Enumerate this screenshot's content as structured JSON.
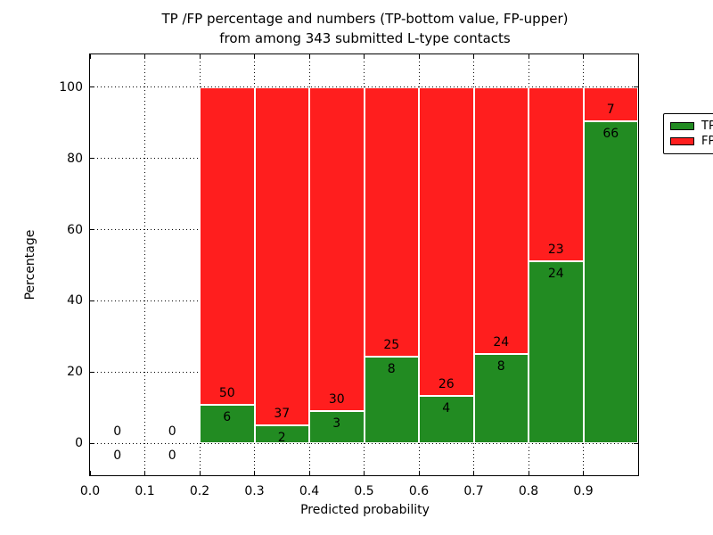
{
  "figure": {
    "title_line1": "TP /FP percentage and numbers (TP-bottom value, FP-upper)",
    "title_line2": "from among 343 submitted L-type contacts",
    "xlabel": "Predicted probability",
    "ylabel": "Percentage"
  },
  "legend": {
    "items": [
      {
        "label": "TP",
        "color": "#228b22"
      },
      {
        "label": "FP",
        "color": "#ff1e1e"
      }
    ]
  },
  "chart_data": {
    "type": "bar",
    "stacked": true,
    "title": "TP /FP percentage and numbers (TP-bottom value, FP-upper) from among 343 submitted L-type contacts",
    "xlabel": "Predicted probability",
    "ylabel": "Percentage",
    "xlim": [
      0.0,
      1.0
    ],
    "ylim": [
      -9,
      109.25
    ],
    "x_tick_values": [
      0.0,
      0.1,
      0.2,
      0.3,
      0.4,
      0.5,
      0.6,
      0.7,
      0.8,
      0.9
    ],
    "x_tick_labels": [
      "0.0",
      "0.1",
      "0.2",
      "0.3",
      "0.4",
      "0.5",
      "0.6",
      "0.7",
      "0.8",
      "0.9"
    ],
    "y_tick_values": [
      0,
      20,
      40,
      60,
      80,
      100
    ],
    "y_tick_labels": [
      "0",
      "20",
      "40",
      "60",
      "80",
      "100"
    ],
    "grid": "dotted",
    "legend_position": "upper right",
    "bin_width": 0.1,
    "series": [
      {
        "name": "TP",
        "color": "#228b22"
      },
      {
        "name": "FP",
        "color": "#ff1e1e"
      }
    ],
    "total_contacts": 343,
    "bins": [
      {
        "x_start": 0.0,
        "tp_count": 0,
        "fp_count": 0,
        "tp_pct": 0,
        "fp_pct": 0
      },
      {
        "x_start": 0.1,
        "tp_count": 0,
        "fp_count": 0,
        "tp_pct": 0,
        "fp_pct": 0
      },
      {
        "x_start": 0.2,
        "tp_count": 6,
        "fp_count": 50,
        "tp_pct": 10.71,
        "fp_pct": 89.29
      },
      {
        "x_start": 0.3,
        "tp_count": 2,
        "fp_count": 37,
        "tp_pct": 5.13,
        "fp_pct": 94.87
      },
      {
        "x_start": 0.4,
        "tp_count": 3,
        "fp_count": 30,
        "tp_pct": 9.09,
        "fp_pct": 90.91
      },
      {
        "x_start": 0.5,
        "tp_count": 8,
        "fp_count": 25,
        "tp_pct": 24.24,
        "fp_pct": 75.76
      },
      {
        "x_start": 0.6,
        "tp_count": 4,
        "fp_count": 26,
        "tp_pct": 13.33,
        "fp_pct": 86.67
      },
      {
        "x_start": 0.7,
        "tp_count": 8,
        "fp_count": 24,
        "tp_pct": 25.0,
        "fp_pct": 75.0
      },
      {
        "x_start": 0.8,
        "tp_count": 24,
        "fp_count": 23,
        "tp_pct": 51.06,
        "fp_pct": 48.94
      },
      {
        "x_start": 0.9,
        "tp_count": 66,
        "fp_count": 7,
        "tp_pct": 90.41,
        "fp_pct": 9.59
      }
    ]
  }
}
